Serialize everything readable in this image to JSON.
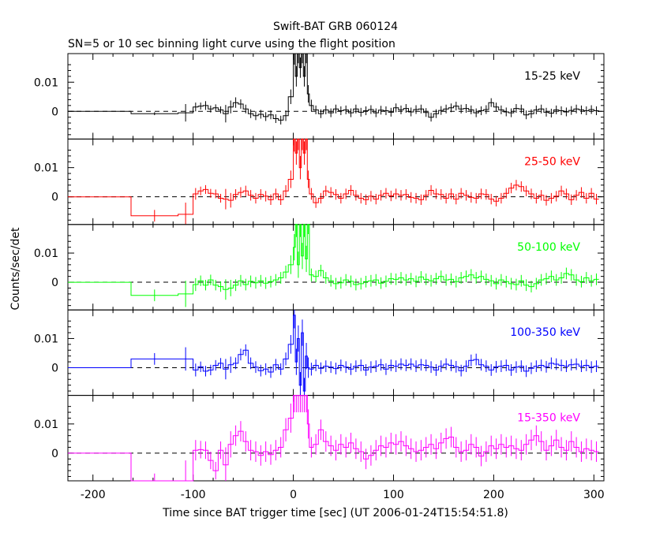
{
  "chart_data": {
    "type": "line",
    "title": "Swift-BAT GRB 060124",
    "subtitle": "SN=5 or 10 sec binning light curve using the flight position",
    "xlabel": "Time since BAT trigger time [sec] (UT 2006-01-24T15:54:51.8)",
    "ylabel": "Counts/sec/det",
    "xlim": [
      -225,
      310
    ],
    "ylim": [
      -0.0095,
      0.0198
    ],
    "x_ticks": [
      -200,
      -100,
      0,
      100,
      200,
      300
    ],
    "x_tick_labels": [
      "-200",
      "-100",
      "0",
      "100",
      "200",
      "300"
    ],
    "y_ticks": [
      0,
      0.01
    ],
    "y_tick_labels": [
      "0",
      "0.01"
    ],
    "zero_line": "dashed",
    "bins": [
      -225,
      -162,
      -115,
      -100,
      -95,
      -90,
      -85,
      -80,
      -75,
      -70,
      -65,
      -60,
      -55,
      -50,
      -45,
      -40,
      -35,
      -30,
      -25,
      -20,
      -15,
      -10,
      -5,
      0,
      2,
      4,
      6,
      8,
      10,
      12,
      14,
      16,
      20,
      25,
      30,
      35,
      40,
      45,
      50,
      55,
      60,
      65,
      70,
      75,
      80,
      85,
      90,
      95,
      100,
      105,
      110,
      115,
      120,
      125,
      130,
      135,
      140,
      145,
      150,
      155,
      160,
      165,
      170,
      175,
      180,
      185,
      190,
      195,
      200,
      205,
      210,
      215,
      220,
      225,
      230,
      235,
      240,
      245,
      250,
      255,
      260,
      265,
      270,
      275,
      280,
      285,
      290,
      295,
      300,
      305
    ],
    "panels": [
      {
        "label": "15-25 keV",
        "color": "#000000",
        "values": [
          0,
          -0.0008,
          -0.0005,
          0.0015,
          0.0018,
          0.002,
          0.0008,
          0.0012,
          0.0005,
          -0.0008,
          0.0015,
          0.003,
          0.0025,
          0.0008,
          -0.0008,
          -0.0015,
          -0.001,
          -0.0018,
          -0.0012,
          -0.0025,
          -0.003,
          -0.0015,
          0.005,
          0.02,
          0.012,
          0.02,
          0.015,
          0.02,
          0.012,
          0.02,
          0.006,
          0.002,
          0.0005,
          -0.0008,
          0.0005,
          -0.0005,
          0.0008,
          0.0002,
          0.0005,
          -0.0005,
          0.0008,
          -0.0003,
          0.0002,
          0.0006,
          -0.0005,
          0.0004,
          0.0002,
          -0.0003,
          0.0012,
          0.0005,
          0.001,
          -0.0002,
          0.0006,
          0.0008,
          -0.0004,
          -0.002,
          -0.0008,
          0.0003,
          0.0008,
          0.0012,
          0.0018,
          0.0008,
          0.001,
          0.0005,
          -0.0005,
          0.0002,
          0.0006,
          0.003,
          0.0015,
          0.0005,
          -0.0002,
          -0.0005,
          0.001,
          0.0008,
          -0.0012,
          -0.0008,
          0.0005,
          0.0008,
          -0.0003,
          -0.0006,
          0.0005,
          0.0002,
          -0.0002,
          0.0003,
          0.0008,
          0.0005,
          0.0002,
          0.0006,
          0.0002
        ],
        "errors": [
          0.0002,
          0.0005,
          0.003,
          0.0015,
          0.0012,
          0.0015,
          0.0012,
          0.0012,
          0.0012,
          0.003,
          0.0022,
          0.0018,
          0.0016,
          0.0015,
          0.0015,
          0.0015,
          0.0015,
          0.0015,
          0.0015,
          0.0015,
          0.0015,
          0.0018,
          0.0025,
          0.004,
          0.0035,
          0.0035,
          0.0035,
          0.0035,
          0.0035,
          0.0035,
          0.003,
          0.002,
          0.0015,
          0.0015,
          0.0015,
          0.0015,
          0.0015,
          0.0015,
          0.0015,
          0.0015,
          0.0015,
          0.0015,
          0.0015,
          0.0015,
          0.0015,
          0.0015,
          0.0015,
          0.0015,
          0.0015,
          0.0015,
          0.0015,
          0.0015,
          0.0015,
          0.0015,
          0.0015,
          0.0015,
          0.0015,
          0.0015,
          0.0015,
          0.0015,
          0.0015,
          0.0015,
          0.0015,
          0.0015,
          0.0015,
          0.0015,
          0.0015,
          0.0015,
          0.0015,
          0.0015,
          0.0015,
          0.0015,
          0.0015,
          0.0015,
          0.0015,
          0.0015,
          0.0015,
          0.0015,
          0.0015,
          0.0015,
          0.0015,
          0.0015,
          0.0015,
          0.0015,
          0.0015,
          0.0015,
          0.0015,
          0.0015,
          0.0015
        ]
      },
      {
        "label": "25-50 keV",
        "color": "#ff0000",
        "values": [
          0,
          -0.0065,
          -0.006,
          0.001,
          0.002,
          0.0025,
          0.0012,
          0.001,
          -0.0005,
          -0.0008,
          -0.0012,
          0.0008,
          0.0015,
          0.002,
          0.0005,
          -0.0005,
          0.0008,
          0.0002,
          -0.001,
          0.001,
          -0.001,
          0.002,
          0.006,
          0.02,
          0.015,
          0.02,
          0.01,
          0.02,
          0.015,
          0.02,
          0.006,
          0.001,
          -0.002,
          -0.0005,
          0.002,
          0.0015,
          0.0008,
          -0.0005,
          0.001,
          0.0022,
          0.0005,
          -0.0005,
          -0.001,
          0.0002,
          -0.0008,
          0.0005,
          0.0012,
          0.0003,
          0.001,
          0.0005,
          0.0008,
          -0.0002,
          -0.0005,
          -0.001,
          0.0005,
          0.0022,
          0.001,
          0.0008,
          -0.0005,
          0.001,
          -0.0008,
          0.0012,
          0.0005,
          -0.0002,
          -0.0005,
          0.001,
          0.0008,
          -0.0008,
          -0.0015,
          -0.0005,
          0.0012,
          0.003,
          0.004,
          0.0035,
          0.002,
          0.001,
          -0.0005,
          0.0005,
          -0.0012,
          -0.0005,
          0.0002,
          0.002,
          0.001,
          -0.001,
          0.0005,
          0.0015,
          -0.0005,
          0.0012,
          -0.0008
        ],
        "errors": [
          0.0002,
          0.002,
          0.004,
          0.002,
          0.0015,
          0.0015,
          0.0015,
          0.0015,
          0.0015,
          0.0035,
          0.0025,
          0.0018,
          0.0018,
          0.0018,
          0.0018,
          0.0018,
          0.0018,
          0.0018,
          0.0018,
          0.0018,
          0.0018,
          0.002,
          0.003,
          0.0045,
          0.004,
          0.004,
          0.004,
          0.004,
          0.004,
          0.004,
          0.003,
          0.002,
          0.0018,
          0.0018,
          0.0018,
          0.0018,
          0.0018,
          0.0018,
          0.0018,
          0.0018,
          0.0018,
          0.0018,
          0.0018,
          0.0018,
          0.0018,
          0.0018,
          0.0018,
          0.0018,
          0.0018,
          0.0018,
          0.0018,
          0.0018,
          0.0018,
          0.0018,
          0.0018,
          0.0018,
          0.0018,
          0.0018,
          0.0018,
          0.0018,
          0.0018,
          0.0018,
          0.0018,
          0.0018,
          0.0018,
          0.0018,
          0.0018,
          0.0018,
          0.0018,
          0.0018,
          0.0018,
          0.0018,
          0.0018,
          0.0018,
          0.0018,
          0.0018,
          0.0018,
          0.0018,
          0.0018,
          0.0018,
          0.0018,
          0.0018,
          0.0018,
          0.0018,
          0.0018,
          0.0018,
          0.0018,
          0.0018,
          0.0018
        ]
      },
      {
        "label": "50-100 keV",
        "color": "#00ff00",
        "values": [
          0,
          -0.0045,
          -0.004,
          -0.0008,
          0.0005,
          -0.001,
          0.0008,
          -0.001,
          -0.0015,
          -0.0025,
          -0.002,
          -0.001,
          0.0005,
          -0.0008,
          0.0003,
          -0.0002,
          0.0005,
          -0.0003,
          0.0002,
          0.0008,
          0.0015,
          0.0035,
          0.006,
          0.012,
          0.02,
          0.006,
          0.02,
          0.009,
          0.02,
          0.008,
          0.02,
          0.0025,
          0.002,
          0.004,
          0.0015,
          0.0005,
          -0.0005,
          -0.0002,
          0.0008,
          0.0003,
          -0.0008,
          -0.0005,
          0.0002,
          0.0005,
          0.0008,
          -0.0003,
          0.0003,
          0.0012,
          0.001,
          0.0015,
          0.0008,
          0.0012,
          0.0003,
          0.0018,
          0.001,
          0.0005,
          0.0012,
          0.002,
          0.0008,
          0.001,
          0.0002,
          0.0015,
          0.002,
          0.0025,
          0.0015,
          0.002,
          0.001,
          0.0005,
          -0.0005,
          0.0008,
          0.0002,
          -0.0005,
          -0.0008,
          0.0005,
          -0.001,
          -0.0015,
          -0.0005,
          0.0008,
          0.0012,
          0.002,
          0.0008,
          0.0015,
          0.003,
          0.0025,
          0.0008,
          0.0002,
          0.0015,
          0.0005,
          0.001
        ],
        "errors": [
          0.0002,
          0.002,
          0.0045,
          0.0022,
          0.0018,
          0.0018,
          0.0018,
          0.0018,
          0.0018,
          0.0035,
          0.0028,
          0.002,
          0.002,
          0.002,
          0.002,
          0.002,
          0.002,
          0.002,
          0.002,
          0.002,
          0.002,
          0.0022,
          0.0032,
          0.0045,
          0.0045,
          0.0045,
          0.0045,
          0.0045,
          0.0045,
          0.0045,
          0.0035,
          0.0022,
          0.002,
          0.002,
          0.002,
          0.002,
          0.002,
          0.002,
          0.002,
          0.002,
          0.002,
          0.002,
          0.002,
          0.002,
          0.002,
          0.002,
          0.002,
          0.002,
          0.002,
          0.002,
          0.002,
          0.002,
          0.002,
          0.002,
          0.002,
          0.002,
          0.002,
          0.002,
          0.002,
          0.002,
          0.002,
          0.002,
          0.002,
          0.002,
          0.002,
          0.002,
          0.002,
          0.002,
          0.002,
          0.002,
          0.002,
          0.002,
          0.002,
          0.002,
          0.002,
          0.002,
          0.002,
          0.002,
          0.002,
          0.002,
          0.002,
          0.002,
          0.002,
          0.002,
          0.002,
          0.002,
          0.002,
          0.002,
          0.002
        ]
      },
      {
        "label": "100-350 keV",
        "color": "#0000ff",
        "values": [
          0,
          0.003,
          0.003,
          -0.0008,
          0.0003,
          -0.0012,
          -0.0008,
          0.0008,
          0.0015,
          -0.0005,
          0.001,
          0.0015,
          0.0045,
          0.006,
          0.0015,
          0.0002,
          -0.001,
          -0.0005,
          -0.0015,
          0.001,
          -0.0005,
          0.003,
          0.008,
          0.018,
          0.002,
          0.01,
          -0.006,
          0.012,
          -0.008,
          0.004,
          0.0,
          -0.0005,
          0.0008,
          -0.0002,
          0.0005,
          0.0002,
          -0.0003,
          0.0008,
          0.0002,
          -0.0005,
          0.0005,
          0.0008,
          -0.0008,
          0.0002,
          0.0005,
          0.001,
          -0.0005,
          0.0008,
          0.0005,
          0.0012,
          0.0008,
          0.0012,
          0.0005,
          0.001,
          0.0008,
          0.0002,
          -0.0008,
          0.0005,
          0.0012,
          0.0008,
          0.0003,
          -0.001,
          0.0005,
          0.0025,
          0.0028,
          0.001,
          0.0005,
          -0.0008,
          0.0003,
          0.0005,
          0.0008,
          -0.0008,
          0.0002,
          0.0005,
          -0.0012,
          -0.0002,
          0.0005,
          0.0008,
          0.0003,
          0.0015,
          0.0012,
          0.0008,
          0.0005,
          0.001,
          0.0012,
          0.0005,
          0.0008,
          0.0002,
          0.0005
        ],
        "errors": [
          0.0002,
          0.002,
          0.004,
          0.0022,
          0.0018,
          0.0018,
          0.0018,
          0.0018,
          0.0018,
          0.0035,
          0.0028,
          0.002,
          0.002,
          0.002,
          0.002,
          0.002,
          0.002,
          0.002,
          0.002,
          0.002,
          0.002,
          0.0022,
          0.0032,
          0.0045,
          0.0045,
          0.0045,
          0.0045,
          0.0045,
          0.0045,
          0.0045,
          0.0035,
          0.0022,
          0.002,
          0.002,
          0.002,
          0.002,
          0.002,
          0.002,
          0.002,
          0.002,
          0.002,
          0.002,
          0.002,
          0.002,
          0.002,
          0.002,
          0.002,
          0.002,
          0.002,
          0.002,
          0.002,
          0.002,
          0.002,
          0.002,
          0.002,
          0.002,
          0.002,
          0.002,
          0.002,
          0.002,
          0.002,
          0.002,
          0.002,
          0.002,
          0.002,
          0.002,
          0.002,
          0.002,
          0.002,
          0.002,
          0.002,
          0.002,
          0.002,
          0.002,
          0.002,
          0.002,
          0.002,
          0.002,
          0.002,
          0.002,
          0.002,
          0.002,
          0.002,
          0.002,
          0.002,
          0.002,
          0.002,
          0.002,
          0.002
        ]
      },
      {
        "label": "15-350 keV",
        "color": "#ff00ff",
        "values": [
          0,
          -0.0095,
          -0.0095,
          0.001,
          0.0012,
          0.001,
          -0.0025,
          -0.006,
          0.001,
          -0.004,
          0.003,
          0.006,
          0.0075,
          0.004,
          0.001,
          0.0005,
          -0.0008,
          0.0005,
          -0.0005,
          0.001,
          0.002,
          0.008,
          0.012,
          0.02,
          0.02,
          0.02,
          0.02,
          0.02,
          0.02,
          0.02,
          0.01,
          0.002,
          0.003,
          0.008,
          0.004,
          0.0025,
          0.001,
          0.003,
          0.002,
          0.0035,
          0.0015,
          0.0005,
          -0.002,
          -0.0008,
          0.001,
          0.0025,
          0.002,
          0.0035,
          0.003,
          0.004,
          0.0025,
          0.0015,
          0.0005,
          0.001,
          0.002,
          0.003,
          0.0015,
          0.0035,
          0.005,
          0.0055,
          0.002,
          0.0005,
          0.001,
          0.003,
          0.002,
          -0.001,
          0.0005,
          0.0025,
          0.0015,
          0.003,
          0.002,
          0.0025,
          0.0015,
          0.001,
          0.003,
          0.0045,
          0.006,
          0.004,
          0.001,
          0.0025,
          0.0045,
          0.002,
          0.001,
          0.004,
          0.002,
          0.0005,
          0.0015,
          0.001,
          0.0005
        ],
        "errors": [
          0.0002,
          0.0025,
          0.007,
          0.0035,
          0.003,
          0.003,
          0.003,
          0.003,
          0.003,
          0.006,
          0.0045,
          0.0035,
          0.0035,
          0.0035,
          0.0035,
          0.0035,
          0.0035,
          0.0035,
          0.0035,
          0.0035,
          0.0035,
          0.004,
          0.005,
          0.006,
          0.006,
          0.006,
          0.006,
          0.006,
          0.006,
          0.006,
          0.005,
          0.0035,
          0.0035,
          0.0035,
          0.0035,
          0.0035,
          0.0035,
          0.0035,
          0.0035,
          0.0035,
          0.0035,
          0.0035,
          0.0035,
          0.0035,
          0.0035,
          0.0035,
          0.0035,
          0.0035,
          0.0035,
          0.0035,
          0.0035,
          0.0035,
          0.0035,
          0.0035,
          0.0035,
          0.0035,
          0.0035,
          0.0035,
          0.0035,
          0.0035,
          0.0035,
          0.0035,
          0.0035,
          0.0035,
          0.0035,
          0.0035,
          0.0035,
          0.0035,
          0.0035,
          0.0035,
          0.0035,
          0.0035,
          0.0035,
          0.0035,
          0.0035,
          0.0035,
          0.0035,
          0.0035,
          0.0035,
          0.0035,
          0.0035,
          0.0035,
          0.0035,
          0.0035,
          0.0035,
          0.0035,
          0.0035,
          0.0035,
          0.0035
        ]
      }
    ]
  }
}
